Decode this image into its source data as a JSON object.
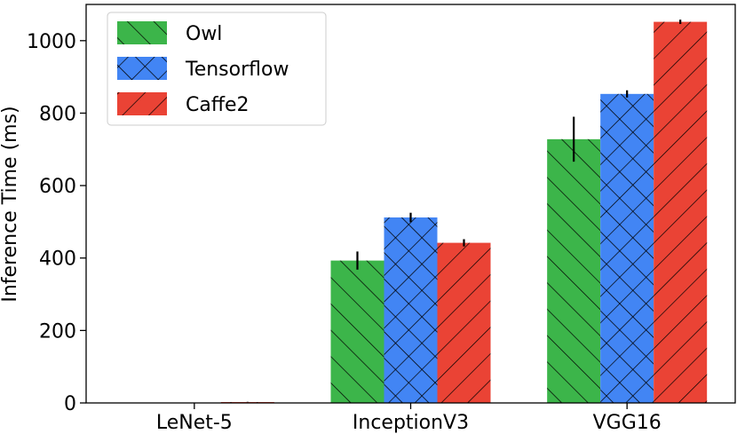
{
  "chart_data": {
    "type": "bar",
    "title": "",
    "xlabel": "",
    "ylabel": "Inference Time (ms)",
    "ylim": [
      0,
      1100
    ],
    "yticks": [
      0,
      200,
      400,
      600,
      800,
      1000
    ],
    "grid": false,
    "legend_position": "top-left",
    "categories": [
      "LeNet-5",
      "InceptionV3",
      "VGG16"
    ],
    "series": [
      {
        "name": "Owl",
        "color": "#3cb54a",
        "hatch": "forward-diagonal",
        "values": [
          0.6,
          393,
          728
        ],
        "errors": [
          0.2,
          25,
          62
        ]
      },
      {
        "name": "Tensorflow",
        "color": "#4285f4",
        "hatch": "cross-diagonal",
        "values": [
          0.9,
          512,
          853
        ],
        "errors": [
          0.3,
          13,
          10
        ]
      },
      {
        "name": "Caffe2",
        "color": "#ea4335",
        "hatch": "back-diagonal",
        "values": [
          2.5,
          442,
          1052
        ],
        "errors": [
          0.5,
          10,
          6
        ]
      }
    ]
  }
}
